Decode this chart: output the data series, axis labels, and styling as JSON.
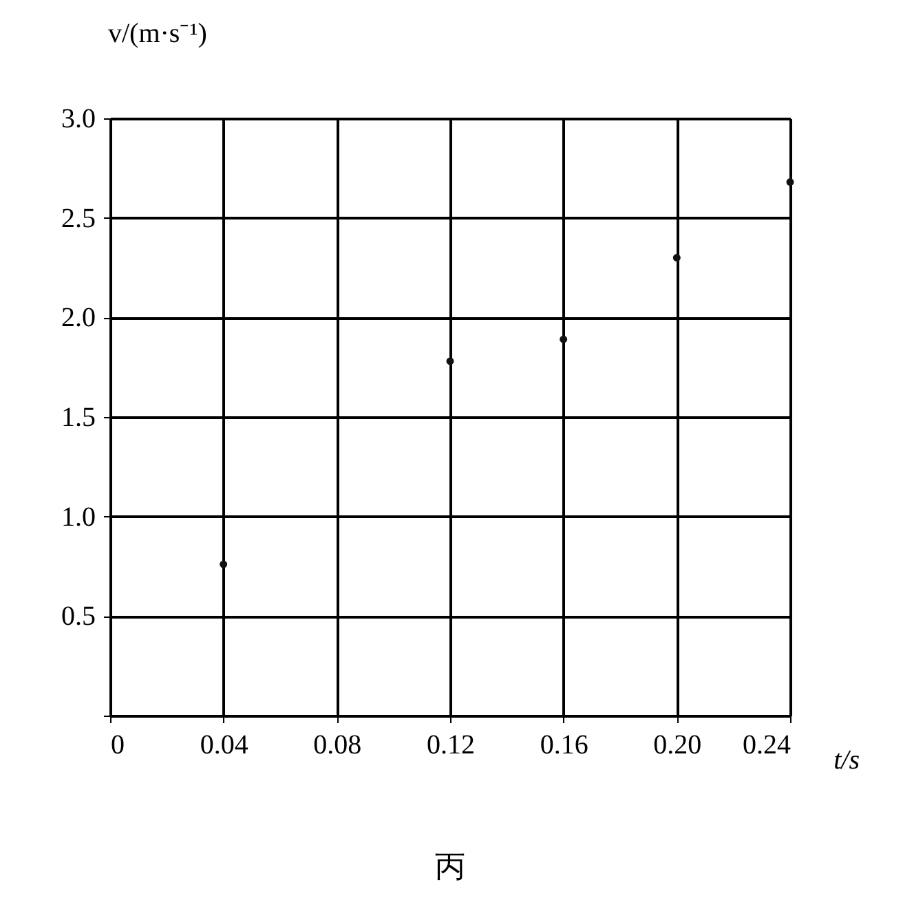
{
  "chart_data": {
    "type": "scatter",
    "xlabel": "t/s",
    "ylabel": "v/(m·s⁻¹)",
    "x": [
      0.04,
      0.12,
      0.16,
      0.2,
      0.24
    ],
    "series": [
      {
        "color": "#111111",
        "values": [
          0.76,
          1.78,
          1.89,
          2.3,
          2.68
        ]
      }
    ],
    "xlim": [
      0,
      0.24
    ],
    "ylim": [
      0,
      3.0
    ],
    "xticks": [
      0,
      0.04,
      0.08,
      0.12,
      0.16,
      {
        "value": 0.2,
        "label": "0.20"
      },
      0.24
    ],
    "yticks": [
      {
        "value": 0,
        "label": null
      },
      0.5,
      {
        "value": 1,
        "label": "1.0"
      },
      1.5,
      {
        "value": 2,
        "label": "2.0"
      },
      2.5,
      {
        "value": 3,
        "label": "3.0"
      }
    ],
    "grid": true,
    "marker": "circle",
    "annotations": [
      "丙"
    ]
  }
}
